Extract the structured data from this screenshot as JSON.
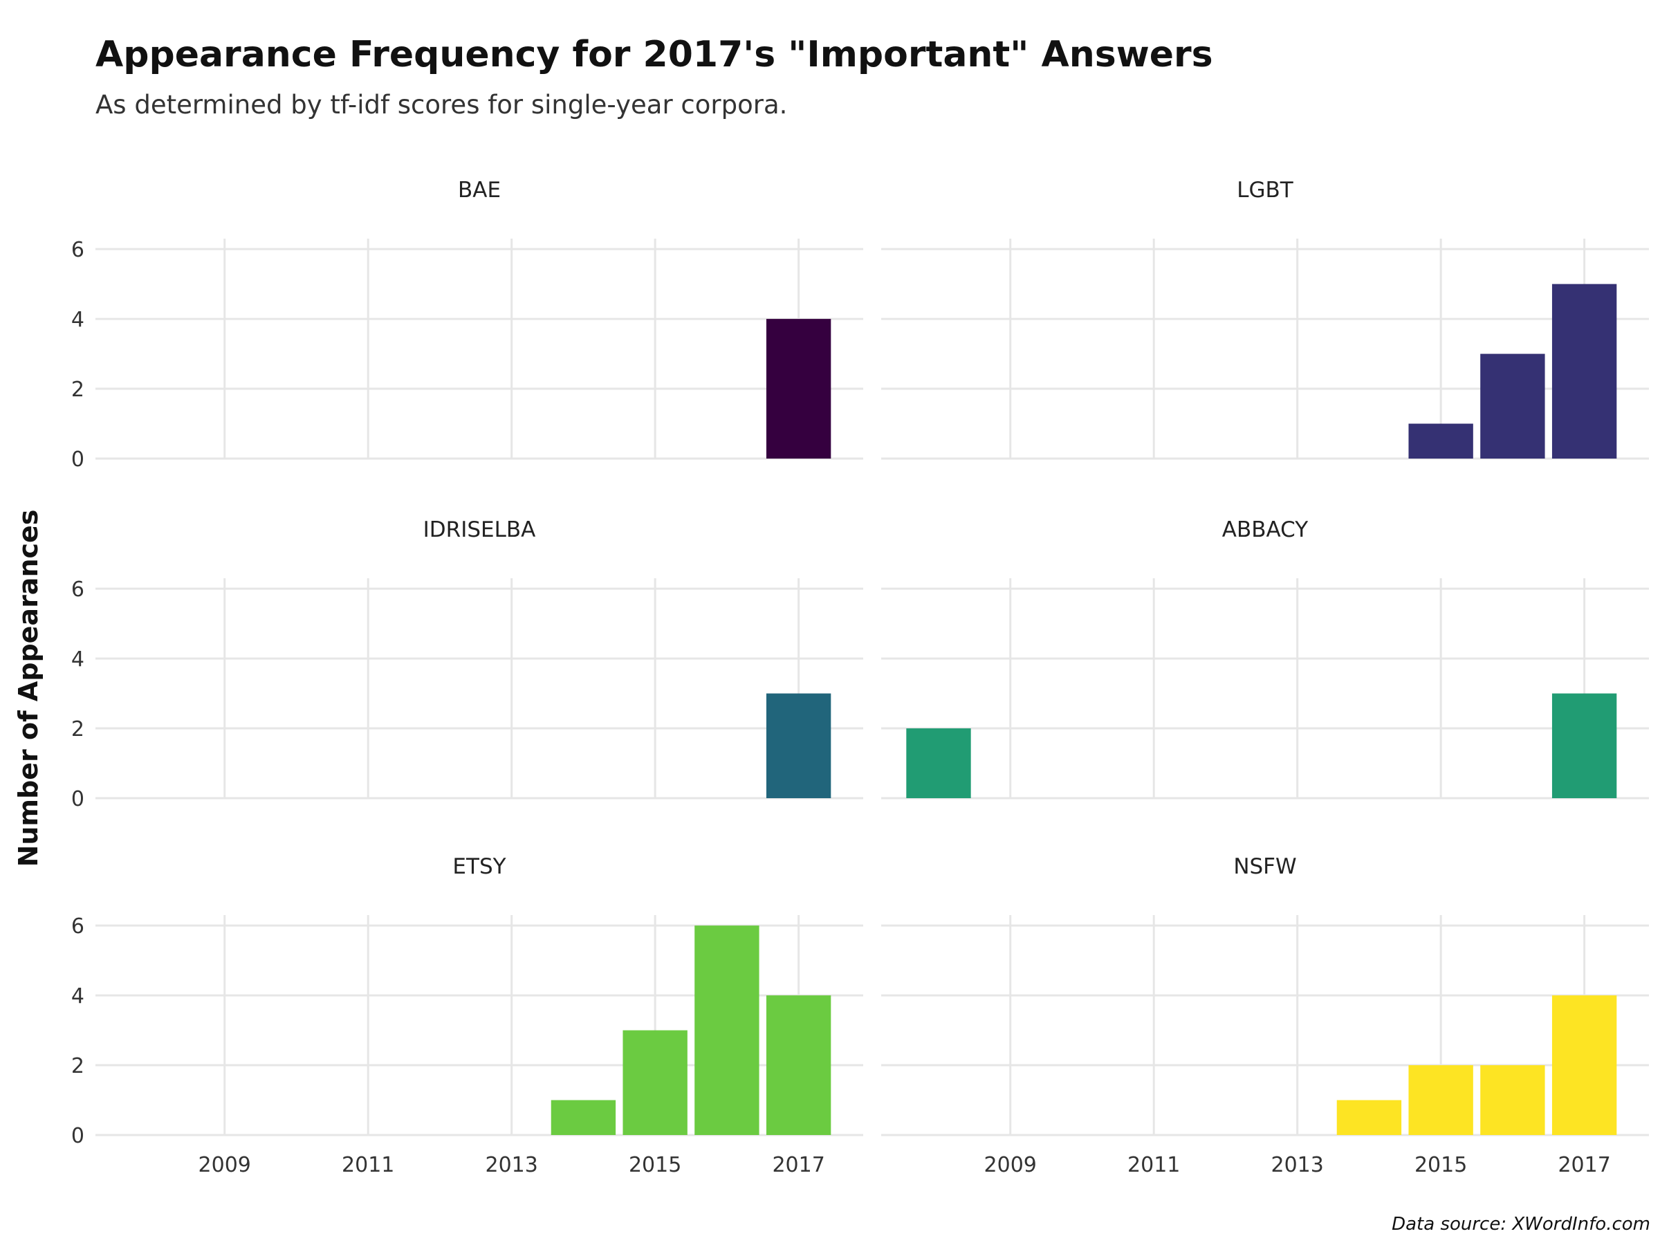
{
  "title": "Appearance Frequency for 2017's \"Important\" Answers",
  "subtitle": "As determined by tf-idf scores for single-year corpora.",
  "caption": "Data source: XWordInfo.com",
  "chart_data": {
    "type": "bar",
    "ylabel": "Number of Appearances",
    "xlabel": "",
    "x_ticks": [
      2009,
      2011,
      2013,
      2015,
      2017
    ],
    "y_ticks": [
      0,
      2,
      4,
      6
    ],
    "xlim": [
      2007.2,
      2017.9
    ],
    "ylim": [
      0,
      6.3
    ],
    "grid": true,
    "panels": [
      {
        "name": "BAE",
        "color": "#35003f",
        "x": [
          2017
        ],
        "values": [
          4
        ]
      },
      {
        "name": "LGBT",
        "color": "#353173",
        "x": [
          2015,
          2016,
          2017
        ],
        "values": [
          1,
          3,
          5
        ]
      },
      {
        "name": "IDRISELBA",
        "color": "#21657b",
        "x": [
          2017
        ],
        "values": [
          3
        ]
      },
      {
        "name": "ABBACY",
        "color": "#219c73",
        "x": [
          2008,
          2017
        ],
        "values": [
          2,
          3
        ]
      },
      {
        "name": "ETSY",
        "color": "#6bcb41",
        "x": [
          2014,
          2015,
          2016,
          2017
        ],
        "values": [
          1,
          3,
          6,
          4
        ]
      },
      {
        "name": "NSFW",
        "color": "#fde423",
        "x": [
          2014,
          2015,
          2016,
          2017
        ],
        "values": [
          1,
          2,
          2,
          4
        ]
      }
    ]
  }
}
